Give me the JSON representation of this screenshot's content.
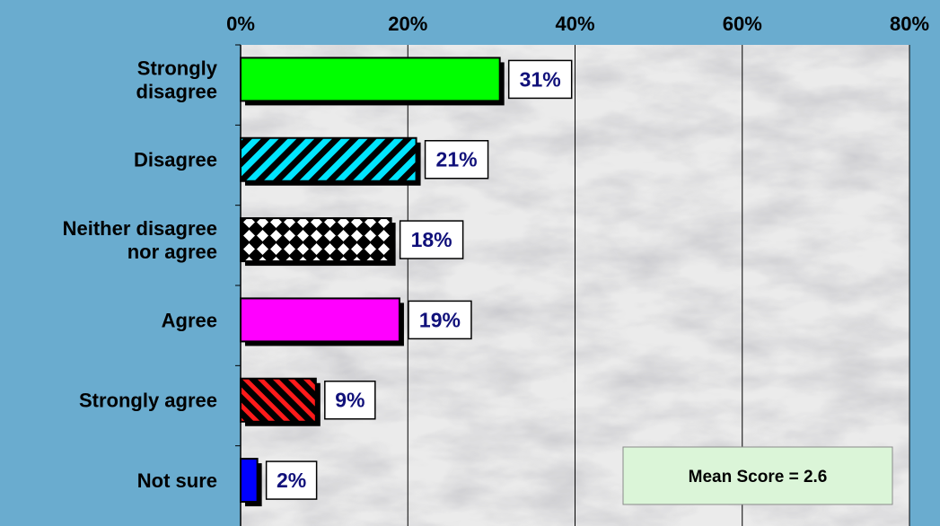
{
  "chart_data": {
    "type": "bar",
    "orientation": "horizontal",
    "categories": [
      [
        "Strongly",
        "disagree"
      ],
      [
        "Disagree"
      ],
      [
        "Neither disagree",
        "nor agree"
      ],
      [
        "Agree"
      ],
      [
        "Strongly agree"
      ],
      [
        "Not sure"
      ]
    ],
    "values": [
      31,
      21,
      18,
      19,
      9,
      2
    ],
    "data_labels": [
      "31%",
      "21%",
      "18%",
      "19%",
      "9%",
      "2%"
    ],
    "xlim": [
      0,
      80
    ],
    "x_ticks": [
      0,
      20,
      40,
      60,
      80
    ],
    "x_tick_labels": [
      "0%",
      "20%",
      "40%",
      "60%",
      "80%"
    ],
    "x_axis_position": "top",
    "grid": true,
    "bar_styles": [
      {
        "fill": "#00ff00",
        "pattern": "solid"
      },
      {
        "fill": "#00e5ff",
        "pattern": "diagonal-stripes"
      },
      {
        "fill": "#ffffff",
        "pattern": "diamonds"
      },
      {
        "fill": "#ff00ff",
        "pattern": "solid"
      },
      {
        "fill": "#ff0000",
        "pattern": "diagonal-stripes"
      },
      {
        "fill": "#0000ff",
        "pattern": "solid"
      }
    ],
    "annotation": "Mean Score = 2.6",
    "colors": {
      "background": "#6aaccf",
      "data_label_text": "#10107a",
      "annotation_box": "#dbf5d8",
      "plot_area": "#e9e9e9"
    }
  }
}
